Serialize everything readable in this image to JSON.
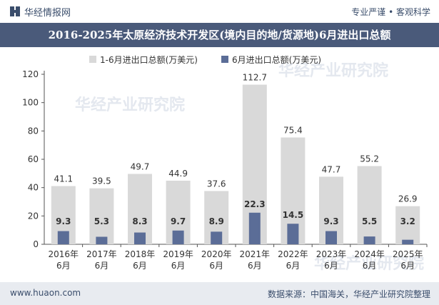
{
  "header": {
    "brand": "华经情报网",
    "tagline": "专业严谨 • 客观科学"
  },
  "footer": {
    "site": "www.huaon.com",
    "source": "数据来源：中国海关，华经产业研究院整理"
  },
  "watermark": "华经产业研究院",
  "colors": {
    "title_bg": "#4a5a7a",
    "series1": "#d9d9d9",
    "series2": "#5b6d97",
    "footer_bg": "#e8ebf0"
  },
  "chart_data": {
    "type": "bar",
    "title": "2016-2025年太原经济技术开发区(境内目的地/货源地)6月进出口总额",
    "categories": [
      "2016年\n6月",
      "2017年\n6月",
      "2018年\n6月",
      "2019年\n6月",
      "2020年\n6月",
      "2021年\n6月",
      "2022年\n6月",
      "2023年\n6月",
      "2024年\n6月",
      "2025年\n6月"
    ],
    "series": [
      {
        "name": "1-6月进出口总额(万美元)",
        "values": [
          41.1,
          39.5,
          49.7,
          44.9,
          37.6,
          112.7,
          75.4,
          47.7,
          55.2,
          26.9
        ]
      },
      {
        "name": "6月进出口总额(万美元)",
        "values": [
          9.3,
          5.3,
          8.3,
          9.7,
          8.9,
          22.3,
          14.5,
          9.3,
          5.5,
          3.2
        ]
      }
    ],
    "ylim": [
      0,
      120
    ],
    "yticks": [
      0,
      20,
      40,
      60,
      80,
      100,
      120
    ],
    "legend": "top",
    "grid": false
  }
}
